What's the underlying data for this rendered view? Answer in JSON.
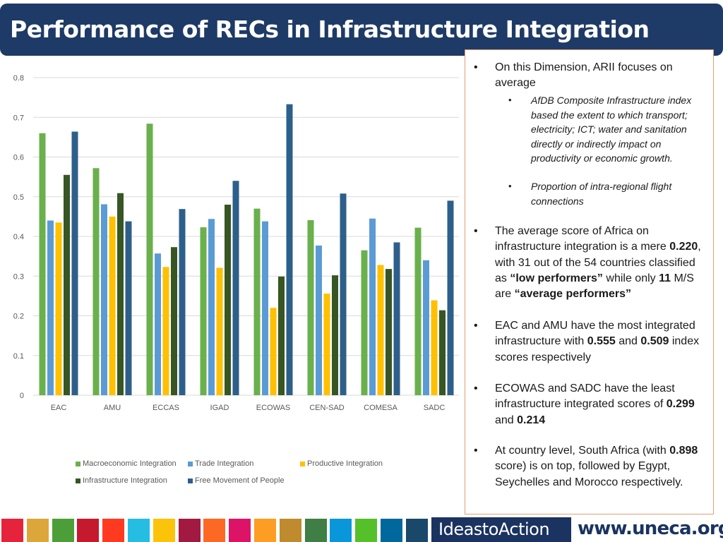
{
  "title": "Performance of RECs in Infrastructure Integration",
  "chart_data": {
    "type": "bar",
    "categories": [
      "EAC",
      "AMU",
      "ECCAS",
      "IGAD",
      "ECOWAS",
      "CEN-SAD",
      "COMESA",
      "SADC"
    ],
    "series": [
      {
        "name": "Macroeconomic Integration",
        "color": "#6ab04c",
        "values": [
          0.66,
          0.572,
          0.684,
          0.423,
          0.47,
          0.441,
          0.365,
          0.422
        ]
      },
      {
        "name": "Trade Integration",
        "color": "#5b9bd5",
        "values": [
          0.44,
          0.481,
          0.357,
          0.444,
          0.438,
          0.377,
          0.445,
          0.34
        ]
      },
      {
        "name": "Productive Integration",
        "color": "#ffc000",
        "values": [
          0.435,
          0.45,
          0.323,
          0.321,
          0.22,
          0.256,
          0.328,
          0.239
        ]
      },
      {
        "name": "Infrastructure Integration",
        "color": "#375623",
        "values": [
          0.555,
          0.509,
          0.373,
          0.48,
          0.299,
          0.302,
          0.318,
          0.214
        ]
      },
      {
        "name": "Free Movement of People",
        "color": "#2e5f8a",
        "values": [
          0.664,
          0.438,
          0.469,
          0.54,
          0.733,
          0.508,
          0.385,
          0.49
        ]
      }
    ],
    "ylim": [
      0,
      0.8
    ],
    "yticks": [
      "0",
      "0.1",
      "0.2",
      "0.3",
      "0.4",
      "0.5",
      "0.6",
      "0.7",
      "0.8"
    ],
    "grid": true,
    "legend_position": "bottom"
  },
  "textbox": {
    "bullet_char": "•",
    "sub_bullet_char": "•",
    "b1": "On this Dimension, ARII focuses on average",
    "b1_sub1": "AfDB Composite Infrastructure index based the extent to which transport; electricity; ICT; water and sanitation directly or indirectly impact on productivity or economic growth.",
    "b1_sub2": "Proportion of intra-regional flight connections",
    "b2": {
      "t1": "The average score of Africa on infrastructure integration is a mere ",
      "v1": "0.220",
      "t2": ", with 31 out of the 54 countries classified as ",
      "v2": "“low performers”",
      "t3": " while only ",
      "v3": "11",
      "t4": " M/S are ",
      "v4": "“average performers”"
    },
    "b3": {
      "t1": "EAC and AMU have the most integrated infrastructure with ",
      "v1": "0.555",
      "t2": " and ",
      "v2": "0.509",
      "t3": " index scores respectively"
    },
    "b4": {
      "t1": "ECOWAS and SADC have the least infrastructure integrated scores of ",
      "v1": "0.299",
      "t2": " and ",
      "v2": "0.214"
    },
    "b5": {
      "t1": "At country level, South Africa (with ",
      "v1": "0.898",
      "t2": " score) is on top, followed by Egypt, Seychelles and Morocco respectively."
    }
  },
  "footer": {
    "squares": [
      "#e5243b",
      "#dda63a",
      "#4c9f38",
      "#c5192d",
      "#ff3a21",
      "#26bde2",
      "#fcc30b",
      "#a21942",
      "#fd6925",
      "#dd1367",
      "#fd9d24",
      "#bf8b2e",
      "#3f7e44",
      "#0a97d9",
      "#56c02b",
      "#00689d",
      "#19486a"
    ],
    "ideas_label": "IdeastoAction",
    "site": "www.uneca.org"
  }
}
